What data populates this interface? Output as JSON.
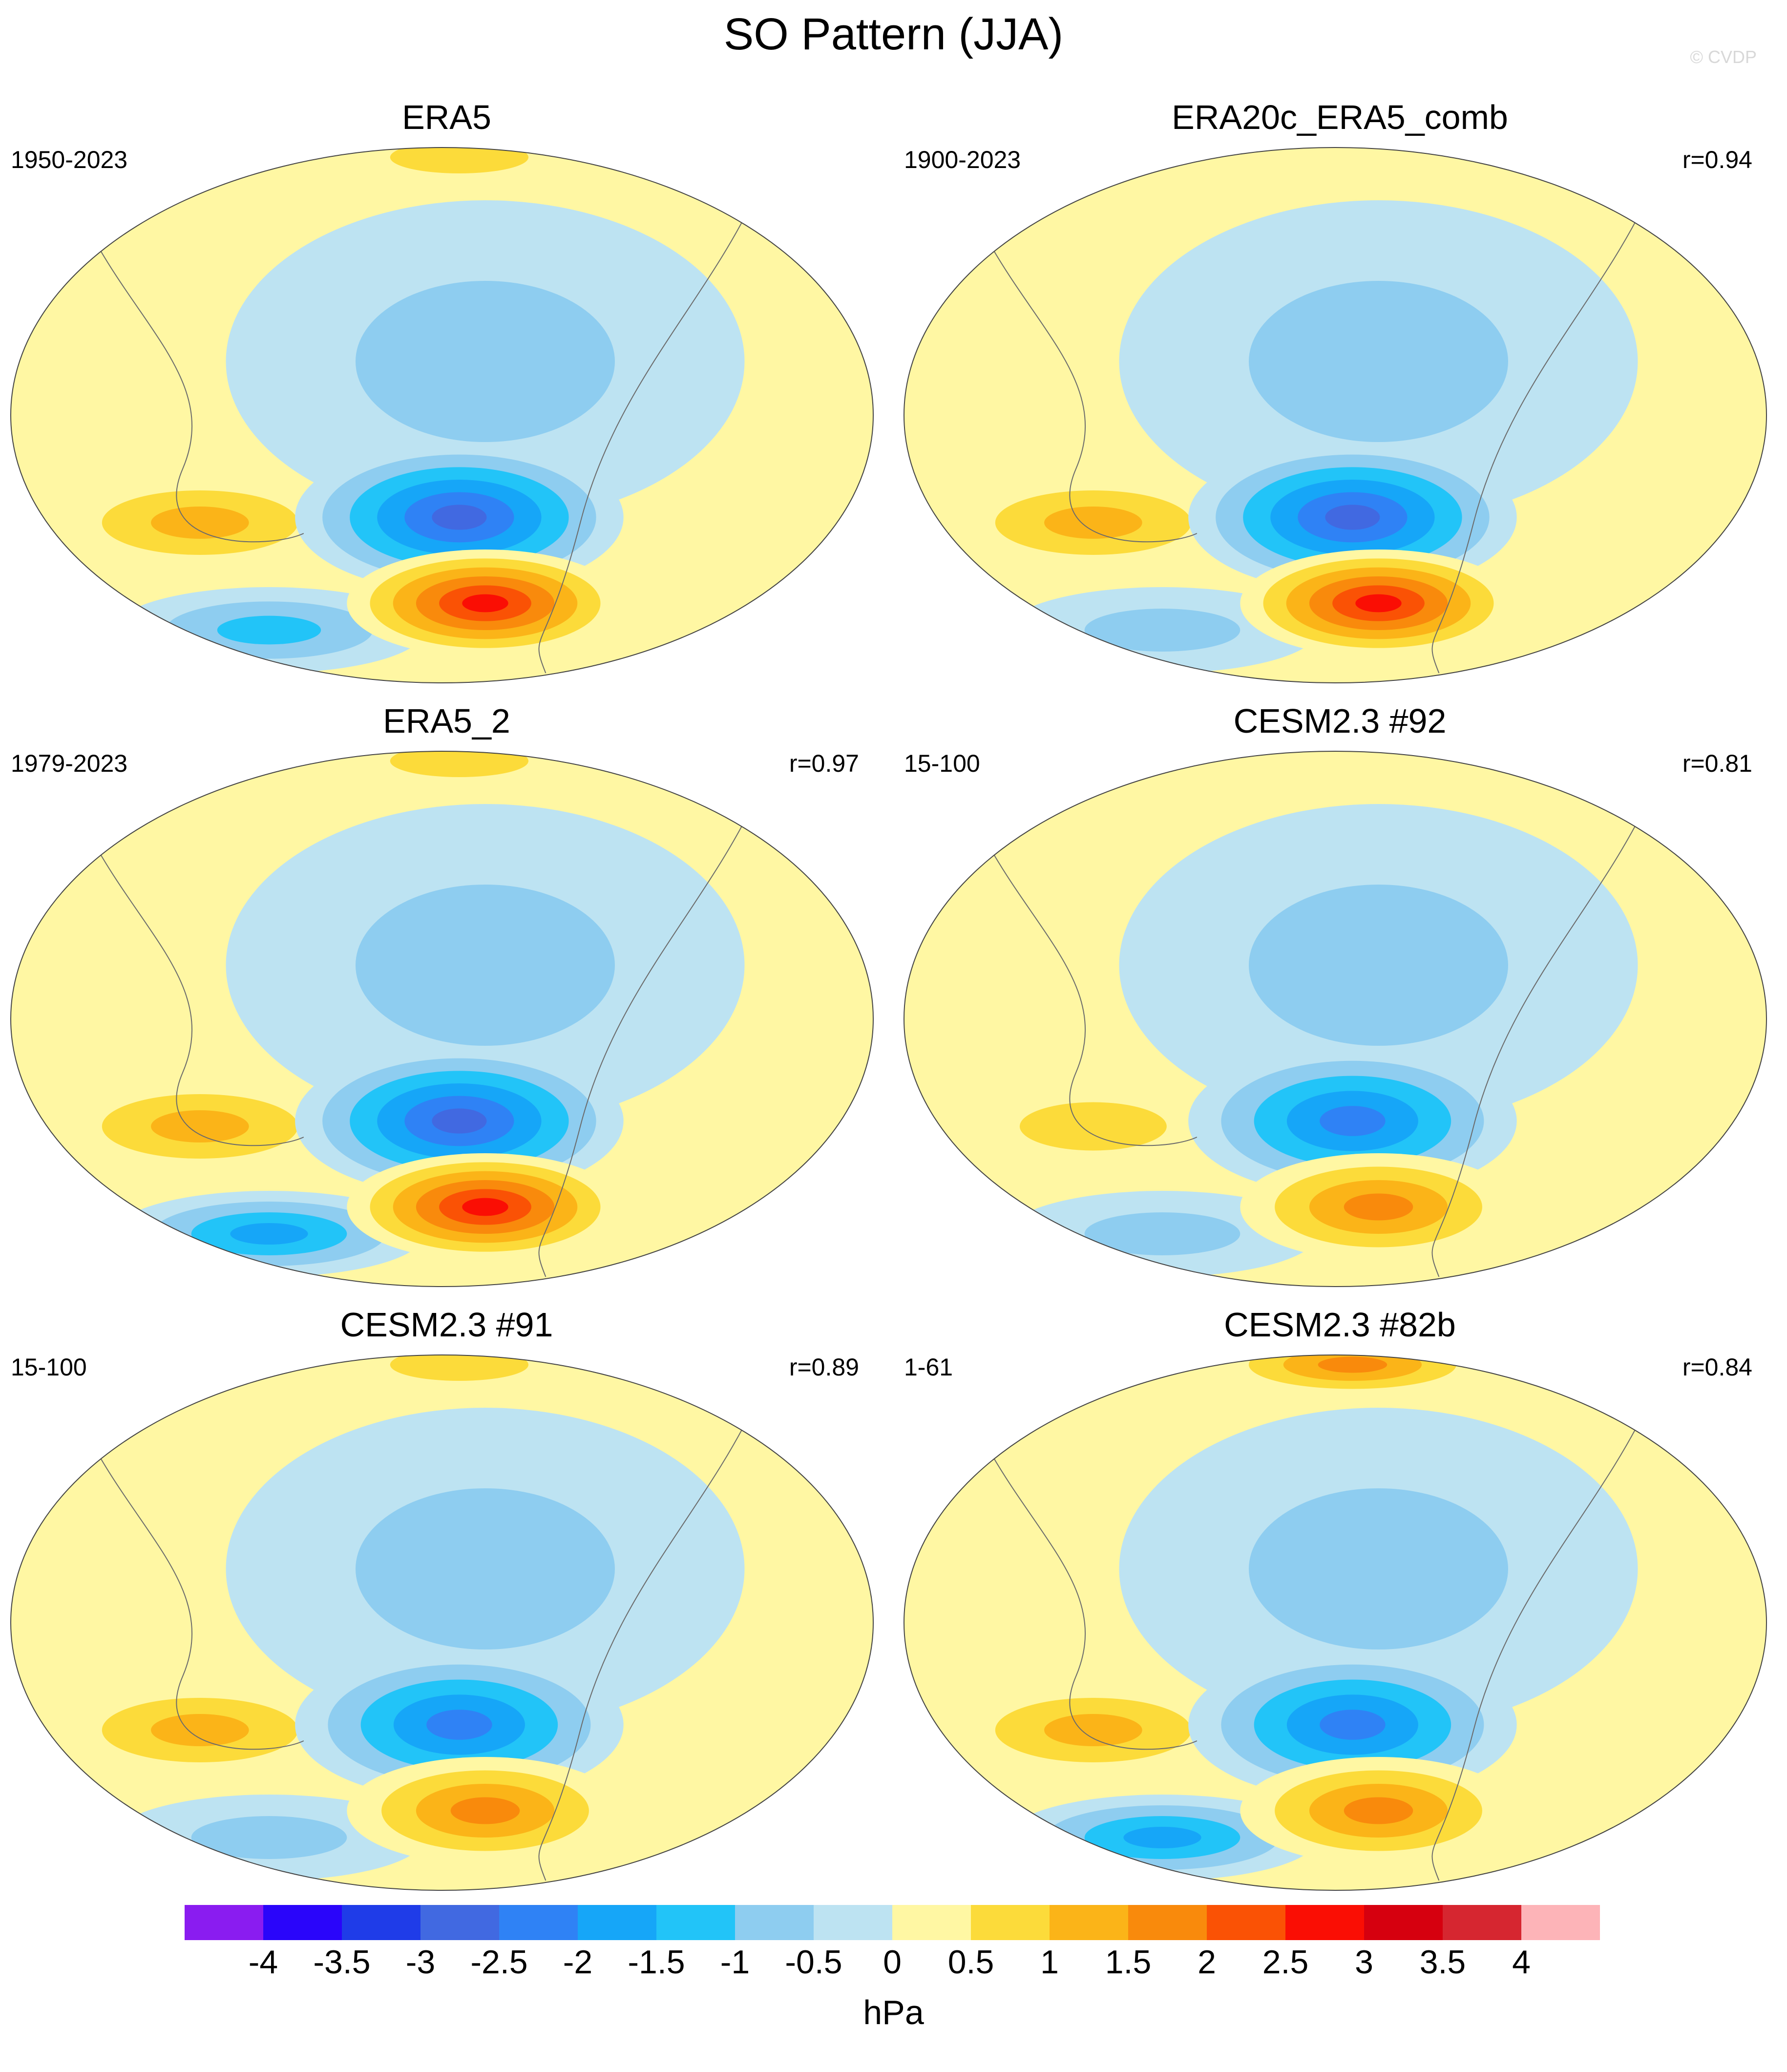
{
  "title": "SO Pattern (JJA)",
  "copyright": "© CVDP",
  "panels": [
    {
      "title": "ERA5",
      "period": "1950-2023",
      "corr": "",
      "pattern": {
        "cn": -2.6,
        "cs": 3.0,
        "au": 1.2,
        "so": -1.1,
        "np": -0.8,
        "arc": 1.0
      }
    },
    {
      "title": "ERA20c_ERA5_comb",
      "period": "1900-2023",
      "corr": "r=0.94",
      "pattern": {
        "cn": -2.7,
        "cs": 2.6,
        "au": 1.1,
        "so": -1.0,
        "np": -0.8,
        "arc": 0.3
      }
    },
    {
      "title": "ERA5_2",
      "period": "1979-2023",
      "corr": "r=0.97",
      "pattern": {
        "cn": -2.7,
        "cs": 2.8,
        "au": 1.3,
        "so": -1.8,
        "np": -0.7,
        "arc": 0.9
      }
    },
    {
      "title": "CESM2.3 #92",
      "period": "15-100",
      "corr": "r=0.81",
      "pattern": {
        "cn": -2.2,
        "cs": 1.7,
        "au": 0.9,
        "so": -0.8,
        "np": -0.9,
        "arc": 0.2
      }
    },
    {
      "title": "CESM2.3 #91",
      "period": "15-100",
      "corr": "r=0.89",
      "pattern": {
        "cn": -2.1,
        "cs": 1.6,
        "au": 1.3,
        "so": -1.0,
        "np": -0.6,
        "arc": 0.9
      }
    },
    {
      "title": "CESM2.3 #82b",
      "period": "1-61",
      "corr": "r=0.84",
      "pattern": {
        "cn": -2.3,
        "cs": 1.9,
        "au": 1.2,
        "so": -1.8,
        "np": -0.7,
        "arc": 1.6
      }
    }
  ],
  "colorbar": {
    "levels": [
      "-4",
      "-3.5",
      "-3",
      "-2.5",
      "-2",
      "-1.5",
      "-1",
      "-0.5",
      "0",
      "0.5",
      "1",
      "1.5",
      "2",
      "2.5",
      "3",
      "3.5",
      "4"
    ],
    "colors": [
      "#8a1cf0",
      "#2a05fa",
      "#1f3ce8",
      "#4169e1",
      "#2f82f5",
      "#16a6f8",
      "#22c4f8",
      "#8ecdf0",
      "#bde3f2",
      "#fff7a3",
      "#fcdb3a",
      "#fbb418",
      "#f98a0c",
      "#fa5205",
      "#fa0e04",
      "#d6000f",
      "#d62630",
      "#fdb4b8"
    ],
    "units": "hPa"
  }
}
